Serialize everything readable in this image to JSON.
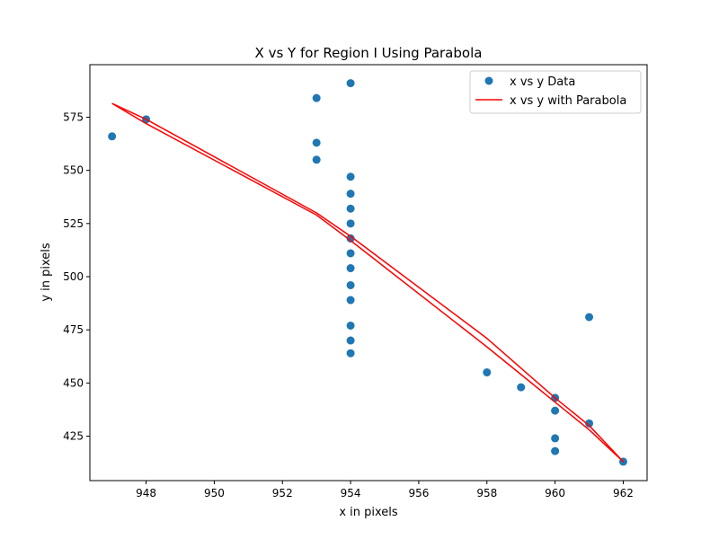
{
  "chart_data": {
    "type": "scatter",
    "title": "X vs Y for Region I Using Parabola",
    "xlabel": "x in pixels",
    "ylabel": "y in pixels",
    "xlim": [
      946.35,
      962.7
    ],
    "ylim": [
      404.1,
      599.7
    ],
    "xticks": [
      948,
      950,
      952,
      954,
      956,
      958,
      960,
      962
    ],
    "yticks": [
      425,
      450,
      475,
      500,
      525,
      550,
      575
    ],
    "grid": false,
    "legend_position": "top-right",
    "colors": {
      "scatter": "#1f77b4",
      "line": "#ff0000"
    },
    "series": [
      {
        "name": "x vs y Data",
        "kind": "scatter",
        "x": [
          947,
          948,
          953,
          953,
          953,
          954,
          954,
          954,
          954,
          954,
          954,
          954,
          954,
          954,
          954,
          954,
          954,
          954,
          954,
          958,
          959,
          960,
          960,
          960,
          960,
          961,
          961,
          962
        ],
        "y": [
          566,
          574,
          584,
          563,
          555,
          591,
          547,
          539,
          532,
          525,
          518,
          511,
          504,
          496,
          489,
          477,
          470,
          464,
          518,
          455,
          448,
          443,
          437,
          424,
          418,
          481,
          431,
          413
        ]
      },
      {
        "name": "x vs y with Parabola",
        "kind": "line",
        "x": [
          947,
          948,
          953,
          954,
          958,
          959,
          960,
          961,
          962,
          961,
          960,
          959,
          958,
          954,
          953,
          948,
          947
        ],
        "y": [
          581.5,
          574,
          530,
          519,
          471,
          457,
          443,
          430,
          413,
          428,
          441,
          454,
          467,
          517,
          529,
          572,
          581.5
        ]
      }
    ]
  }
}
